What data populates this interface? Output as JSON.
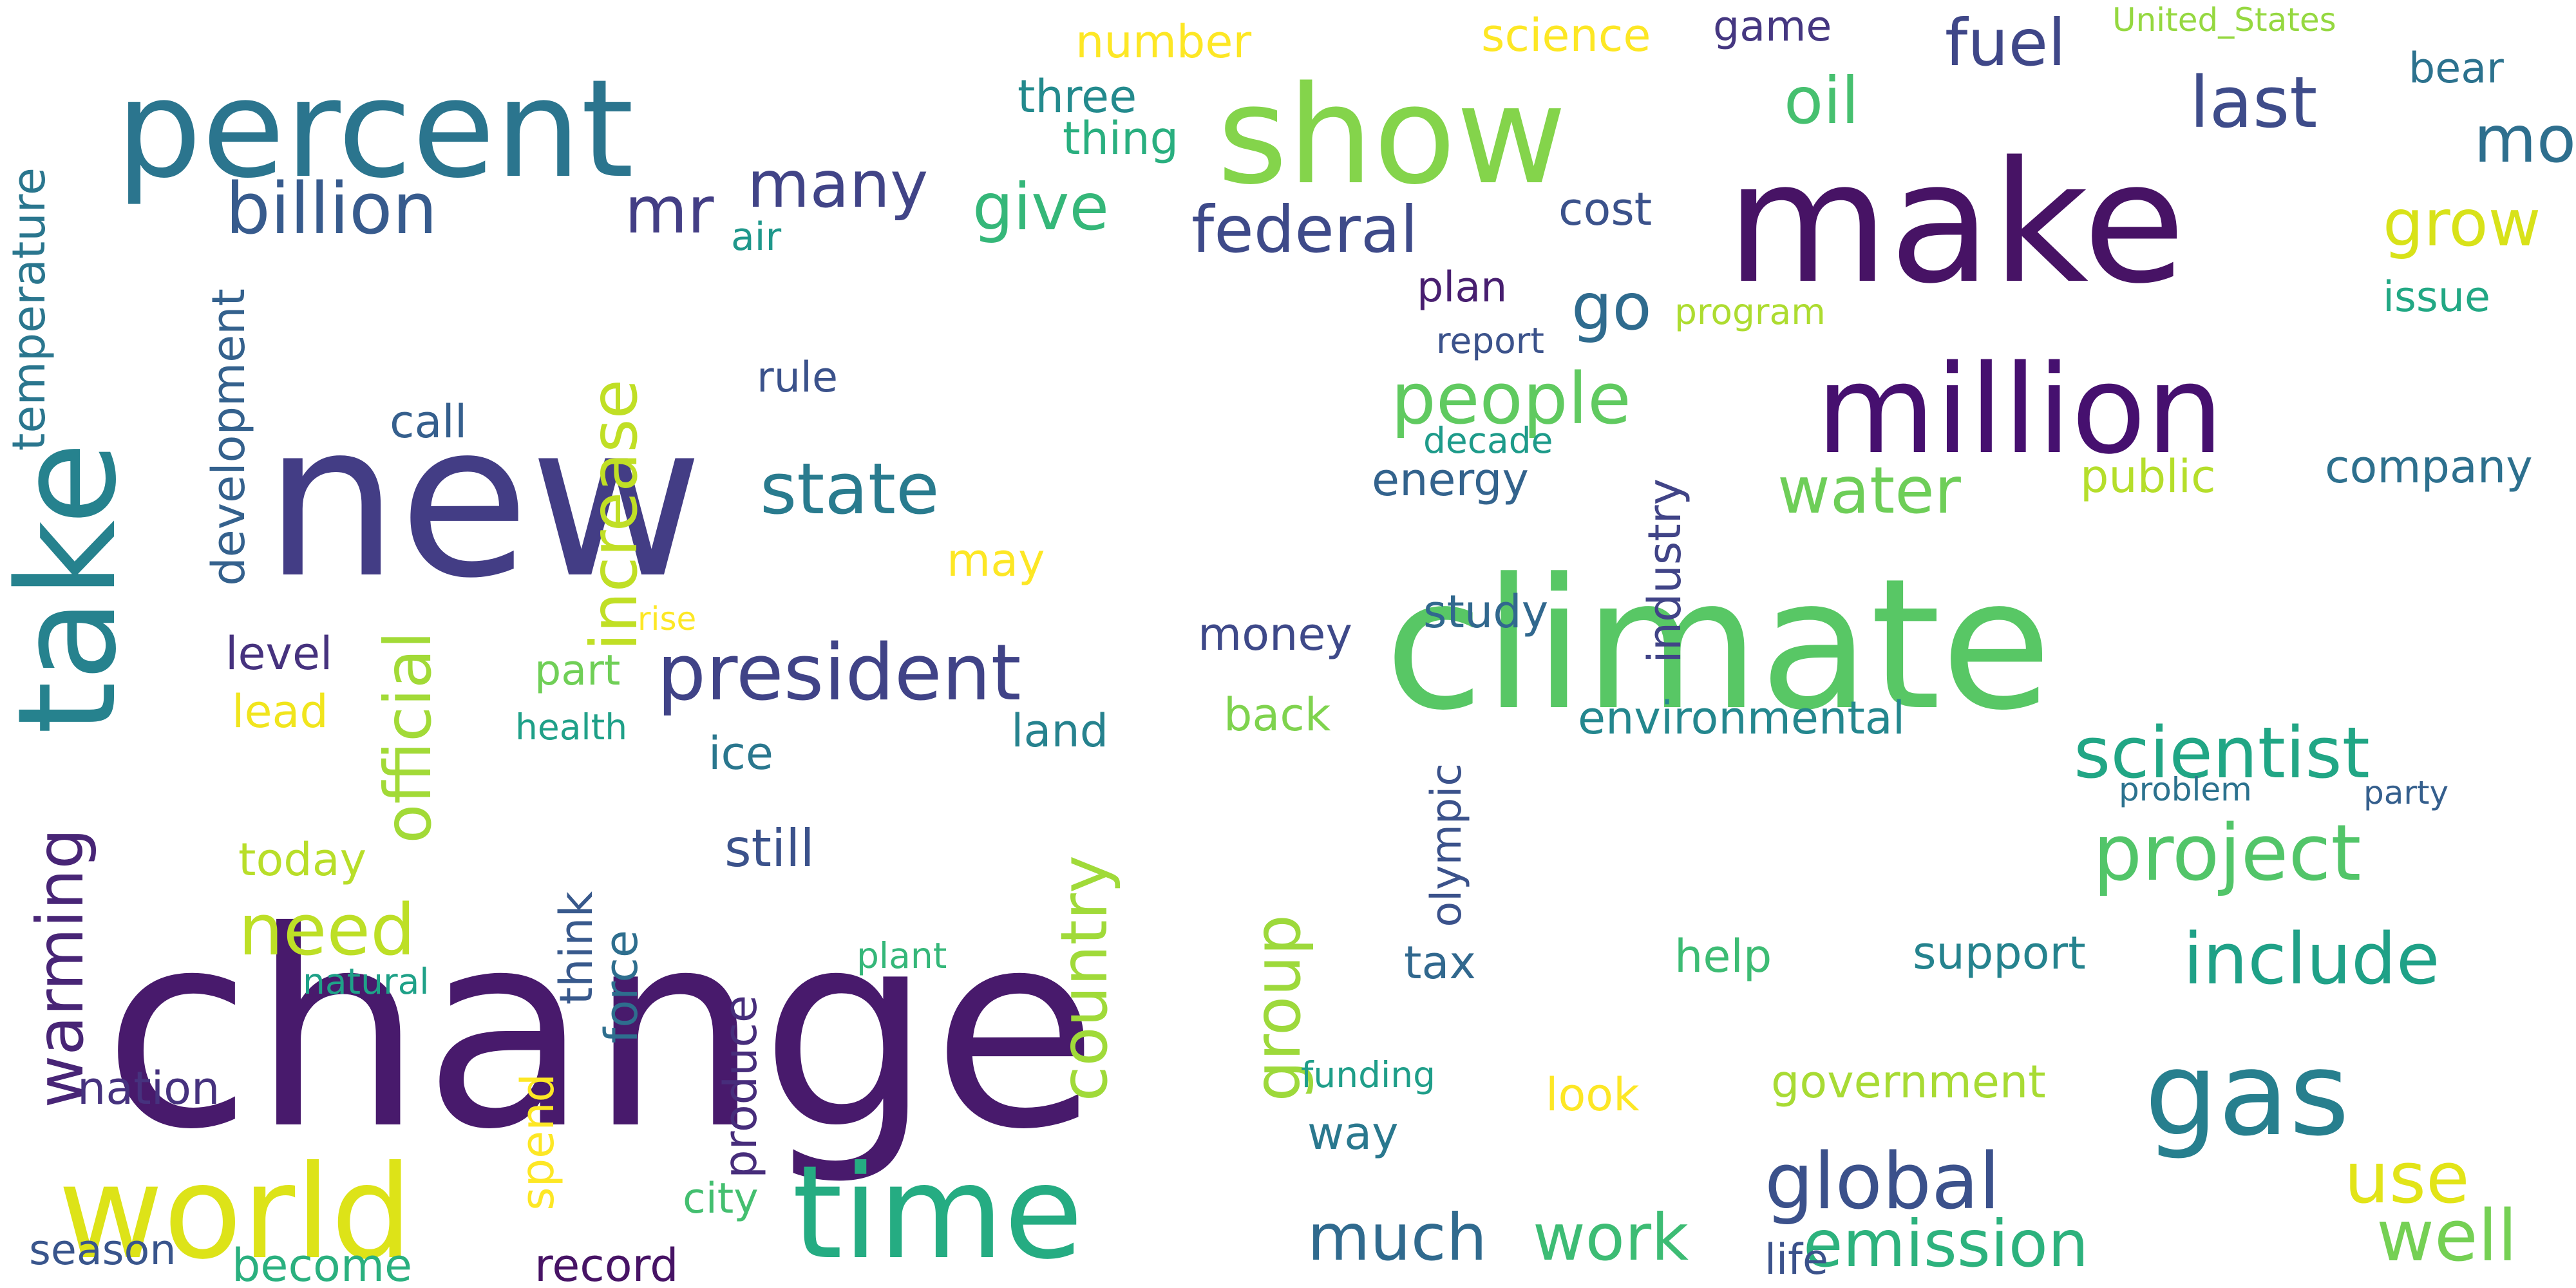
{
  "cloud": {
    "palette": [
      "#440154",
      "#482878",
      "#3e4989",
      "#31688e",
      "#26828e",
      "#1f9e89",
      "#35b779",
      "#6ece58",
      "#b5de2b",
      "#fde725"
    ],
    "words": [
      {
        "text": "new",
        "color": "#433d85"
      },
      {
        "text": "change",
        "color": "#481a6c"
      },
      {
        "text": "climate",
        "color": "#58c765"
      },
      {
        "text": "make",
        "color": "#471365"
      },
      {
        "text": "percent",
        "color": "#2b758e"
      },
      {
        "text": "show",
        "color": "#84d44b"
      },
      {
        "text": "million",
        "color": "#46106f"
      },
      {
        "text": "take",
        "color": "#26828e"
      },
      {
        "text": "world",
        "color": "#dde318"
      },
      {
        "text": "time",
        "color": "#25ac82"
      },
      {
        "text": "gas",
        "color": "#277f8e"
      },
      {
        "text": "president",
        "color": "#404387"
      },
      {
        "text": "scientist",
        "color": "#21a685"
      },
      {
        "text": "project",
        "color": "#52c569"
      },
      {
        "text": "global",
        "color": "#3b518b"
      },
      {
        "text": "include",
        "color": "#1fa187"
      },
      {
        "text": "billion",
        "color": "#375b8d"
      },
      {
        "text": "state",
        "color": "#297b8e"
      },
      {
        "text": "people",
        "color": "#60ca60"
      },
      {
        "text": "many",
        "color": "#414487"
      },
      {
        "text": "federal",
        "color": "#3e4a89"
      },
      {
        "text": "mr",
        "color": "#433e85"
      },
      {
        "text": "last",
        "color": "#3e4c8a"
      },
      {
        "text": "oil",
        "color": "#46c06f"
      },
      {
        "text": "give",
        "color": "#35b779"
      },
      {
        "text": "fuel",
        "color": "#3f4788"
      },
      {
        "text": "go",
        "color": "#2f6b8e"
      },
      {
        "text": "water",
        "color": "#6ece58"
      },
      {
        "text": "official",
        "color": "#a2da37"
      },
      {
        "text": "increase",
        "color": "#c0df25"
      },
      {
        "text": "need",
        "color": "#bddf26"
      },
      {
        "text": "warming",
        "color": "#482576"
      },
      {
        "text": "country",
        "color": "#a0da39"
      },
      {
        "text": "group",
        "color": "#9dd93b"
      },
      {
        "text": "emission",
        "color": "#2db27d"
      },
      {
        "text": "well",
        "color": "#75d054"
      },
      {
        "text": "use",
        "color": "#e2e418"
      },
      {
        "text": "much",
        "color": "#306a8e"
      },
      {
        "text": "work",
        "color": "#3dbc74"
      },
      {
        "text": "mo",
        "color": "#2e6f8e"
      },
      {
        "text": "grow",
        "color": "#d8e219"
      },
      {
        "text": "environmental",
        "color": "#24878e"
      },
      {
        "text": "temperature",
        "color": "#2a768e"
      },
      {
        "text": "development",
        "color": "#34618d"
      },
      {
        "text": "number",
        "color": "#fde725"
      },
      {
        "text": "science",
        "color": "#fde725"
      },
      {
        "text": "game",
        "color": "#453781"
      },
      {
        "text": "United_States",
        "color": "#95d840"
      },
      {
        "text": "bear",
        "color": "#2c728e"
      },
      {
        "text": "three",
        "color": "#238a8d"
      },
      {
        "text": "thing",
        "color": "#29af7f"
      },
      {
        "text": "cost",
        "color": "#3b528b"
      },
      {
        "text": "air",
        "color": "#1f978b"
      },
      {
        "text": "plan",
        "color": "#481f70"
      },
      {
        "text": "issue",
        "color": "#22a884"
      },
      {
        "text": "program",
        "color": "#addc30"
      },
      {
        "text": "report",
        "color": "#3b528b"
      },
      {
        "text": "rule",
        "color": "#3b528b"
      },
      {
        "text": "call",
        "color": "#355f8d"
      },
      {
        "text": "energy",
        "color": "#33638d"
      },
      {
        "text": "decade",
        "color": "#1e9b8a"
      },
      {
        "text": "public",
        "color": "#b5de2b"
      },
      {
        "text": "company",
        "color": "#2d708e"
      },
      {
        "text": "may",
        "color": "#fde725"
      },
      {
        "text": "rise",
        "color": "#fde725"
      },
      {
        "text": "industry",
        "color": "#414487"
      },
      {
        "text": "study",
        "color": "#31688e"
      },
      {
        "text": "money",
        "color": "#3e4989"
      },
      {
        "text": "level",
        "color": "#46327e"
      },
      {
        "text": "part",
        "color": "#70cf57"
      },
      {
        "text": "lead",
        "color": "#f1e51d"
      },
      {
        "text": "health",
        "color": "#1fa088"
      },
      {
        "text": "back",
        "color": "#7fd34e"
      },
      {
        "text": "land",
        "color": "#26828e"
      },
      {
        "text": "ice",
        "color": "#2a778e"
      },
      {
        "text": "olympic",
        "color": "#3b528b"
      },
      {
        "text": "today",
        "color": "#b8de29"
      },
      {
        "text": "still",
        "color": "#3b528b"
      },
      {
        "text": "problem",
        "color": "#2c728e"
      },
      {
        "text": "party",
        "color": "#355f8d"
      },
      {
        "text": "think",
        "color": "#38598c"
      },
      {
        "text": "force",
        "color": "#2e6e8e"
      },
      {
        "text": "tax",
        "color": "#31688e"
      },
      {
        "text": "help",
        "color": "#3dbc74"
      },
      {
        "text": "support",
        "color": "#25838e"
      },
      {
        "text": "plant",
        "color": "#35b779"
      },
      {
        "text": "natural",
        "color": "#1fa188"
      },
      {
        "text": "produce",
        "color": "#472d7b"
      },
      {
        "text": "nation",
        "color": "#46327e"
      },
      {
        "text": "spend",
        "color": "#fde725"
      },
      {
        "text": "funding",
        "color": "#1f9e89"
      },
      {
        "text": "look",
        "color": "#fde725"
      },
      {
        "text": "government",
        "color": "#a8db34"
      },
      {
        "text": "way",
        "color": "#2a788e"
      },
      {
        "text": "city",
        "color": "#44bf70"
      },
      {
        "text": "season",
        "color": "#39558c"
      },
      {
        "text": "become",
        "color": "#2ab07f"
      },
      {
        "text": "record",
        "color": "#471365"
      },
      {
        "text": "life",
        "color": "#3b528b"
      }
    ]
  }
}
